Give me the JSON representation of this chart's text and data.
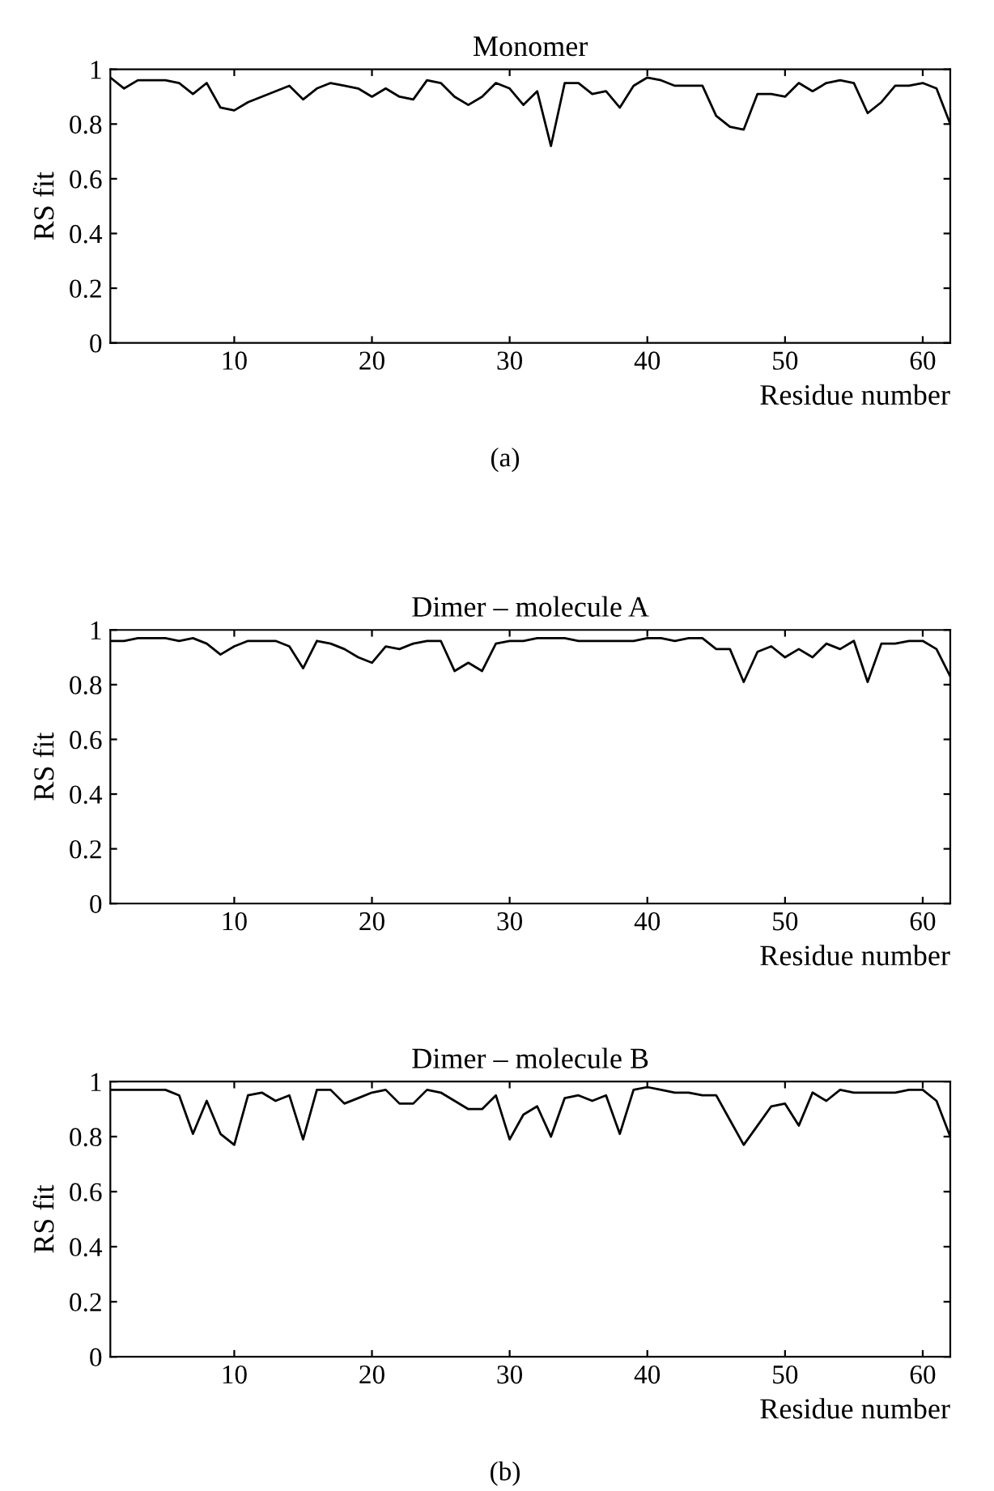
{
  "chart_data": [
    {
      "type": "line",
      "title": "Monomer",
      "xlabel": "Residue number",
      "ylabel": "RS fit",
      "annotations": [
        "(a)"
      ],
      "x": [
        1,
        2,
        3,
        4,
        5,
        6,
        7,
        8,
        9,
        10,
        11,
        12,
        13,
        14,
        15,
        16,
        17,
        18,
        19,
        20,
        21,
        22,
        23,
        24,
        25,
        26,
        27,
        28,
        29,
        30,
        31,
        32,
        33,
        34,
        35,
        36,
        37,
        38,
        39,
        40,
        41,
        42,
        43,
        44,
        45,
        46,
        47,
        48,
        49,
        50,
        51,
        52,
        53,
        54,
        55,
        56,
        57,
        58,
        59,
        60,
        61,
        62
      ],
      "series": [
        {
          "color": "#000000",
          "values": [
            0.97,
            0.93,
            0.96,
            0.96,
            0.96,
            0.95,
            0.91,
            0.95,
            0.86,
            0.85,
            0.88,
            0.9,
            0.92,
            0.94,
            0.89,
            0.93,
            0.95,
            0.94,
            0.93,
            0.9,
            0.93,
            0.9,
            0.89,
            0.96,
            0.95,
            0.9,
            0.87,
            0.9,
            0.95,
            0.93,
            0.87,
            0.92,
            0.72,
            0.95,
            0.95,
            0.91,
            0.92,
            0.86,
            0.94,
            0.97,
            0.96,
            0.94,
            0.94,
            0.94,
            0.83,
            0.79,
            0.78,
            0.91,
            0.91,
            0.9,
            0.95,
            0.92,
            0.95,
            0.96,
            0.95,
            0.84,
            0.88,
            0.94,
            0.94,
            0.95,
            0.93,
            0.8
          ]
        }
      ],
      "xlim": [
        1,
        62
      ],
      "xticks": [
        10,
        20,
        30,
        40,
        50,
        60
      ],
      "ylim": [
        0,
        1
      ],
      "yticks": [
        0,
        0.2,
        0.4,
        0.6,
        0.8,
        1
      ],
      "grid": false,
      "legend": false,
      "marker": "none",
      "line_style": "solid"
    },
    {
      "type": "line",
      "title": "Dimer – molecule A",
      "xlabel": "Residue number",
      "ylabel": "RS fit",
      "x": [
        1,
        2,
        3,
        4,
        5,
        6,
        7,
        8,
        9,
        10,
        11,
        12,
        13,
        14,
        15,
        16,
        17,
        18,
        19,
        20,
        21,
        22,
        23,
        24,
        25,
        26,
        27,
        28,
        29,
        30,
        31,
        32,
        33,
        34,
        35,
        36,
        37,
        38,
        39,
        40,
        41,
        42,
        43,
        44,
        45,
        46,
        47,
        48,
        49,
        50,
        51,
        52,
        53,
        54,
        55,
        56,
        57,
        58,
        59,
        60,
        61,
        62
      ],
      "series": [
        {
          "color": "#000000",
          "values": [
            0.96,
            0.96,
            0.97,
            0.97,
            0.97,
            0.96,
            0.97,
            0.95,
            0.91,
            0.94,
            0.96,
            0.96,
            0.96,
            0.94,
            0.86,
            0.96,
            0.95,
            0.93,
            0.9,
            0.88,
            0.94,
            0.93,
            0.95,
            0.96,
            0.96,
            0.85,
            0.88,
            0.85,
            0.95,
            0.96,
            0.96,
            0.97,
            0.97,
            0.97,
            0.96,
            0.96,
            0.96,
            0.96,
            0.96,
            0.97,
            0.97,
            0.96,
            0.97,
            0.97,
            0.93,
            0.93,
            0.81,
            0.92,
            0.94,
            0.9,
            0.93,
            0.9,
            0.95,
            0.93,
            0.96,
            0.81,
            0.95,
            0.95,
            0.96,
            0.96,
            0.93,
            0.83
          ]
        }
      ],
      "xlim": [
        1,
        62
      ],
      "xticks": [
        10,
        20,
        30,
        40,
        50,
        60
      ],
      "ylim": [
        0,
        1
      ],
      "yticks": [
        0,
        0.2,
        0.4,
        0.6,
        0.8,
        1
      ],
      "grid": false,
      "legend": false,
      "marker": "none",
      "line_style": "solid"
    },
    {
      "type": "line",
      "title": "Dimer – molecule B",
      "xlabel": "Residue number",
      "ylabel": "RS fit",
      "annotations": [
        "(b)"
      ],
      "x": [
        1,
        2,
        3,
        4,
        5,
        6,
        7,
        8,
        9,
        10,
        11,
        12,
        13,
        14,
        15,
        16,
        17,
        18,
        19,
        20,
        21,
        22,
        23,
        24,
        25,
        26,
        27,
        28,
        29,
        30,
        31,
        32,
        33,
        34,
        35,
        36,
        37,
        38,
        39,
        40,
        41,
        42,
        43,
        44,
        45,
        46,
        47,
        48,
        49,
        50,
        51,
        52,
        53,
        54,
        55,
        56,
        57,
        58,
        59,
        60,
        61,
        62
      ],
      "series": [
        {
          "color": "#000000",
          "values": [
            0.97,
            0.97,
            0.97,
            0.97,
            0.97,
            0.95,
            0.81,
            0.93,
            0.81,
            0.77,
            0.95,
            0.96,
            0.93,
            0.95,
            0.79,
            0.97,
            0.97,
            0.92,
            0.94,
            0.96,
            0.97,
            0.92,
            0.92,
            0.97,
            0.96,
            0.93,
            0.9,
            0.9,
            0.95,
            0.79,
            0.88,
            0.91,
            0.8,
            0.94,
            0.95,
            0.93,
            0.95,
            0.81,
            0.97,
            0.98,
            0.97,
            0.96,
            0.96,
            0.95,
            0.95,
            0.86,
            0.77,
            0.84,
            0.91,
            0.92,
            0.84,
            0.96,
            0.93,
            0.97,
            0.96,
            0.96,
            0.96,
            0.96,
            0.97,
            0.97,
            0.93,
            0.8
          ]
        }
      ],
      "xlim": [
        1,
        62
      ],
      "xticks": [
        10,
        20,
        30,
        40,
        50,
        60
      ],
      "ylim": [
        0,
        1
      ],
      "yticks": [
        0,
        0.2,
        0.4,
        0.6,
        0.8,
        1
      ],
      "grid": false,
      "legend": false,
      "marker": "none",
      "line_style": "solid"
    }
  ]
}
